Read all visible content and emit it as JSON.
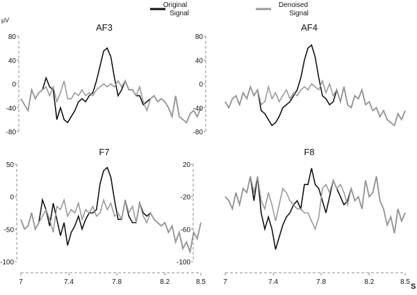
{
  "chart_data": {
    "type": "line",
    "unit_label": "μV",
    "x_unit": "S",
    "legend": [
      {
        "name": "Original Signal",
        "line1": "Original",
        "line2": "Signal",
        "color": "#111111"
      },
      {
        "name": "Denoised Signal",
        "line1": "Denoised",
        "line2": "Signal",
        "color": "#999999"
      }
    ],
    "legend_position": "top-center",
    "x_ticks": [
      "7",
      "7.4",
      "7.8",
      "8.2",
      "8.5"
    ],
    "x_range": [
      7,
      8.5
    ],
    "x_step": 0.03,
    "panels": [
      {
        "title": "AF3",
        "ylim": [
          -80,
          80
        ],
        "y_ticks": [
          "80",
          "40",
          "0",
          "-40",
          "-80"
        ],
        "y_tick_values": [
          80,
          40,
          0,
          -40,
          -80
        ],
        "original": [
          -25,
          -35,
          -45,
          -10,
          -25,
          -15,
          -10,
          10,
          -5,
          -10,
          -60,
          -40,
          -60,
          -65,
          -55,
          -45,
          -30,
          -25,
          -30,
          -20,
          -15,
          5,
          30,
          55,
          60,
          45,
          10,
          -20,
          -10,
          5,
          -10,
          -10,
          -20,
          -20,
          -35,
          -30,
          -25,
          -20,
          -30,
          -25,
          -30,
          -40,
          -55,
          -20,
          -55,
          -60,
          -65,
          -50,
          -45,
          -55,
          -40
        ],
        "denoised": [
          -25,
          -35,
          -45,
          -10,
          -25,
          -15,
          -10,
          -5,
          -20,
          -5,
          -30,
          -15,
          5,
          -25,
          -25,
          -15,
          -20,
          -10,
          -20,
          -15,
          -20,
          -10,
          -5,
          0,
          -5,
          0,
          -5,
          5,
          -5,
          5,
          -10,
          -10,
          -20,
          -5,
          -30,
          -45,
          -25,
          -20,
          -30,
          -25,
          -30,
          -40,
          -55,
          -20,
          -55,
          -60,
          -65,
          -50,
          -45,
          -55,
          -40
        ]
      },
      {
        "title": "AF4",
        "ylim": [
          -80,
          80
        ],
        "y_ticks": [
          "80",
          "40",
          "0",
          "-40",
          "-80"
        ],
        "y_tick_values": [
          80,
          40,
          0,
          -40,
          -80
        ],
        "original": [
          -30,
          -40,
          -25,
          -20,
          -35,
          -15,
          -25,
          -5,
          -20,
          -10,
          -45,
          -50,
          -60,
          -70,
          -65,
          -55,
          -40,
          -35,
          -30,
          -20,
          -10,
          10,
          40,
          60,
          65,
          45,
          10,
          -20,
          -25,
          -35,
          -30,
          -10,
          -30,
          -5,
          -35,
          -40,
          -20,
          -25,
          -10,
          -35,
          -30,
          -45,
          -40,
          -55,
          -45,
          -60,
          -65,
          -70,
          -50,
          -60,
          -45
        ],
        "denoised": [
          -30,
          -40,
          -25,
          -20,
          -35,
          -15,
          -25,
          -5,
          -20,
          -10,
          -35,
          -30,
          -5,
          -25,
          -15,
          -30,
          -20,
          -10,
          -25,
          -15,
          -20,
          -10,
          -5,
          -10,
          0,
          -5,
          -10,
          5,
          -15,
          0,
          -20,
          -10,
          -30,
          -5,
          -35,
          -40,
          -20,
          -25,
          -10,
          -35,
          -30,
          -45,
          -40,
          -55,
          -45,
          -60,
          -65,
          -70,
          -50,
          -60,
          -45
        ]
      },
      {
        "title": "F7",
        "ylim": [
          -100,
          50
        ],
        "y_ticks": [
          "50",
          "0",
          "-50",
          "-100"
        ],
        "y_tick_values": [
          50,
          0,
          -50,
          -100
        ],
        "original": [
          -35,
          -50,
          -45,
          -25,
          -50,
          -40,
          -5,
          -20,
          -45,
          -10,
          -35,
          -60,
          -40,
          -75,
          -55,
          -45,
          -30,
          -50,
          -35,
          -25,
          -25,
          -20,
          20,
          40,
          45,
          30,
          -5,
          -35,
          -35,
          -5,
          -30,
          -40,
          -40,
          -10,
          -25,
          -30,
          -25,
          -35,
          -40,
          -45,
          -40,
          -55,
          -45,
          -70,
          -55,
          -80,
          -70,
          -85,
          -55,
          -65,
          -40
        ],
        "denoised": [
          -35,
          -50,
          -45,
          -25,
          -50,
          -40,
          -30,
          -20,
          -35,
          -55,
          -15,
          -20,
          -5,
          -30,
          -20,
          -25,
          -10,
          -35,
          -20,
          -25,
          -15,
          -30,
          -25,
          -5,
          -20,
          -10,
          -30,
          -25,
          -35,
          -5,
          -25,
          -15,
          -40,
          -10,
          -30,
          -40,
          -25,
          -35,
          -40,
          -45,
          -40,
          -55,
          -45,
          -70,
          -55,
          -80,
          -70,
          -85,
          -55,
          -65,
          -40
        ]
      },
      {
        "title": "F8",
        "ylim": [
          -100,
          20
        ],
        "y_ticks": [
          "20",
          "-20",
          "-60",
          "-100"
        ],
        "y_tick_values": [
          20,
          -20,
          -60,
          -100
        ],
        "original": [
          -20,
          -25,
          -35,
          -15,
          -30,
          -10,
          -15,
          5,
          -25,
          5,
          -40,
          -60,
          -45,
          -60,
          -85,
          -70,
          -55,
          -45,
          -40,
          -30,
          -25,
          -35,
          -5,
          -5,
          15,
          -5,
          -10,
          -25,
          -40,
          -20,
          0,
          -10,
          -20,
          -30,
          -25,
          -10,
          -25,
          -20,
          -35,
          0,
          -20,
          -15,
          5,
          -25,
          -35,
          -55,
          -45,
          -65,
          -35,
          -50,
          -40
        ],
        "denoised": [
          -20,
          -25,
          -35,
          -15,
          -30,
          -10,
          -15,
          5,
          -15,
          5,
          -25,
          -35,
          -15,
          -30,
          -50,
          -30,
          -10,
          -15,
          -25,
          -30,
          -35,
          -35,
          -40,
          -40,
          -50,
          -60,
          -45,
          -10,
          -5,
          -15,
          0,
          -10,
          -5,
          -15,
          -30,
          -10,
          -25,
          -20,
          -35,
          0,
          -20,
          -15,
          5,
          -25,
          -35,
          -55,
          -45,
          -65,
          -35,
          -50,
          -40
        ]
      }
    ]
  }
}
